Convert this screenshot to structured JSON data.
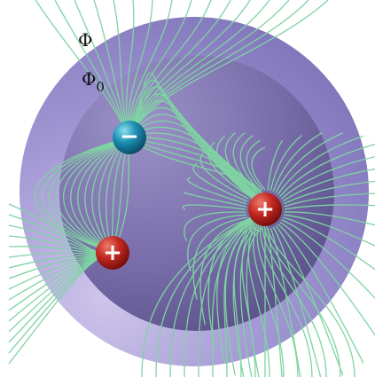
{
  "outer_label": "Φ",
  "inner_label": {
    "symbol": "Φ",
    "subscript": "0"
  },
  "charges": [
    {
      "sign": "−"
    },
    {
      "sign": "+"
    },
    {
      "sign": "+"
    }
  ]
}
